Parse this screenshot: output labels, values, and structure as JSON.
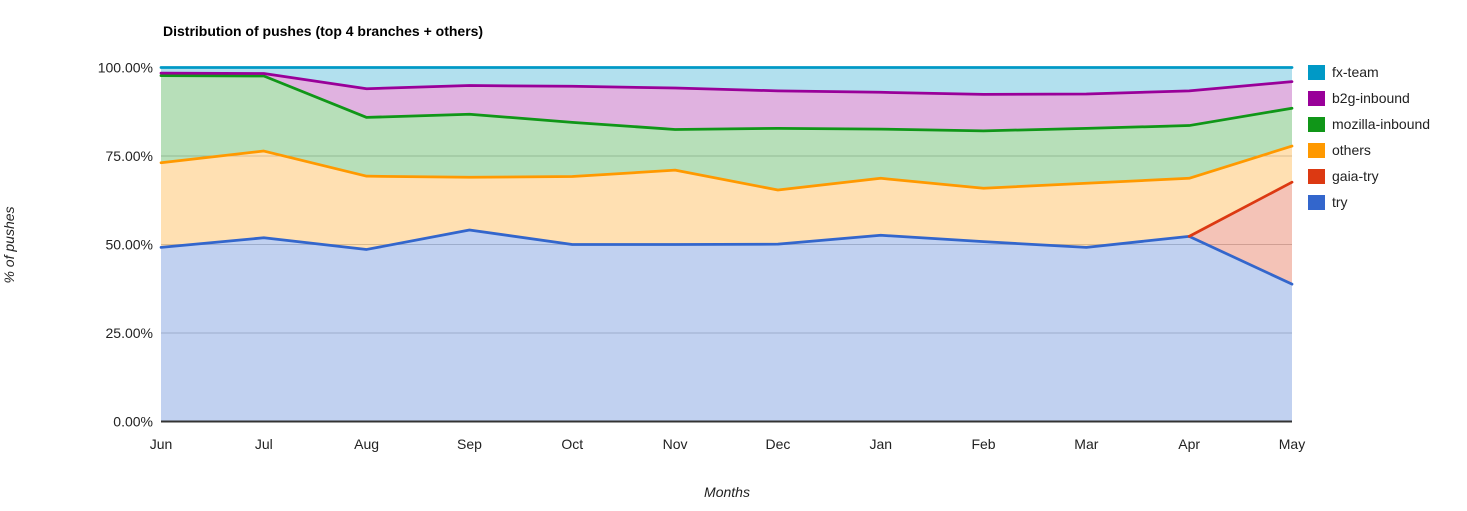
{
  "title": "Distribution of pushes (top 4 branches + others)",
  "y_axis": {
    "title": "% of pushes",
    "ticks": [
      {
        "label": "0.00%",
        "value": 0
      },
      {
        "label": "25.00%",
        "value": 25
      },
      {
        "label": "50.00%",
        "value": 50
      },
      {
        "label": "75.00%",
        "value": 75
      },
      {
        "label": "100.00%",
        "value": 100
      }
    ]
  },
  "x_axis": {
    "title": "Months"
  },
  "legend": [
    {
      "label": "fx-team",
      "color": "#0099c6"
    },
    {
      "label": "b2g-inbound",
      "color": "#990099"
    },
    {
      "label": "mozilla-inbound",
      "color": "#109618"
    },
    {
      "label": "others",
      "color": "#ff9900"
    },
    {
      "label": "gaia-try",
      "color": "#dc3912"
    },
    {
      "label": "try",
      "color": "#3366cc"
    }
  ],
  "colors": {
    "gridline": "#cccccc",
    "baseline": "#333333",
    "tick_text": "#222222",
    "title_text": "#000000",
    "background": "#ffffff"
  },
  "chart_data": {
    "type": "area",
    "stacked": true,
    "unit": "percent",
    "title": "Distribution of pushes (top 4 branches + others)",
    "xlabel": "Months",
    "ylabel": "% of pushes",
    "ylim": [
      0,
      100
    ],
    "grid": true,
    "legend_position": "right",
    "stack_order": "bottom-to-top",
    "fill_opacity": 0.3,
    "x": [
      "Jun",
      "Jul",
      "Aug",
      "Sep",
      "Oct",
      "Nov",
      "Dec",
      "Jan",
      "Feb",
      "Mar",
      "Apr",
      "May"
    ],
    "series": [
      {
        "name": "try",
        "color": "#3366cc",
        "values": [
          49.2,
          51.9,
          48.6,
          54.1,
          50.0,
          50.0,
          50.1,
          52.6,
          50.8,
          49.2,
          52.3,
          38.8
        ]
      },
      {
        "name": "gaia-try",
        "color": "#dc3912",
        "values": [
          null,
          null,
          null,
          null,
          null,
          null,
          null,
          null,
          null,
          null,
          0,
          28.8
        ]
      },
      {
        "name": "others",
        "color": "#ff9900",
        "values": [
          23.9,
          24.5,
          20.7,
          14.9,
          19.2,
          21.0,
          15.3,
          16.1,
          15.1,
          18.1,
          16.4,
          10.2
        ]
      },
      {
        "name": "mozilla-inbound",
        "color": "#109618",
        "values": [
          24.6,
          21.2,
          16.6,
          17.8,
          15.3,
          11.5,
          17.4,
          13.9,
          16.2,
          15.5,
          14.9,
          10.7
        ]
      },
      {
        "name": "b2g-inbound",
        "color": "#990099",
        "values": [
          0.7,
          0.7,
          8.1,
          8.1,
          10.2,
          11.7,
          10.6,
          10.4,
          10.3,
          9.7,
          9.8,
          7.5
        ]
      },
      {
        "name": "fx-team",
        "color": "#0099c6",
        "values": [
          1.6,
          1.7,
          6.0,
          5.1,
          5.3,
          5.8,
          6.6,
          7.0,
          7.6,
          7.5,
          6.6,
          4.0
        ]
      }
    ]
  }
}
